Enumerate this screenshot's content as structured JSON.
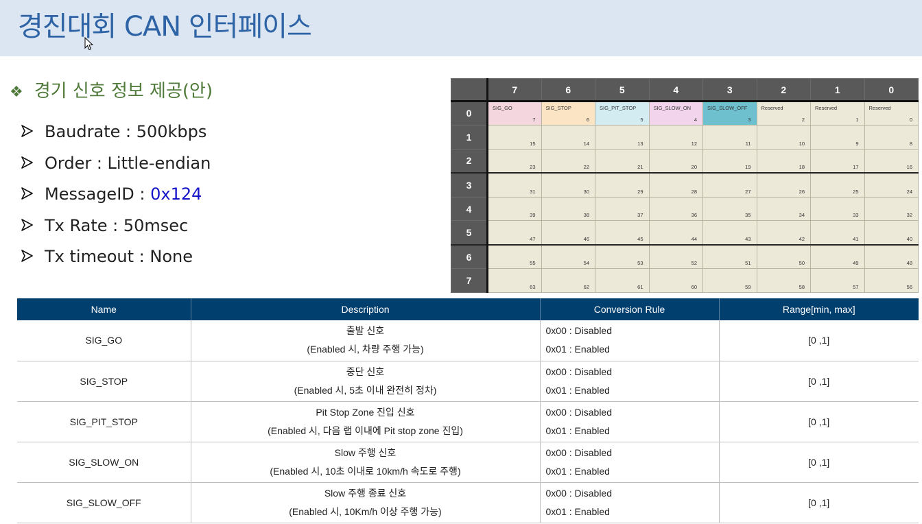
{
  "header": {
    "title": "경진대회 CAN 인터페이스"
  },
  "section": {
    "bullet": "❖",
    "title": "경기 신호 정보 제공(안)"
  },
  "specs": [
    {
      "label": "Baudrate",
      "sep": " : ",
      "value": "500kbps"
    },
    {
      "label": "Order",
      "sep": " : ",
      "value": "Little-endian"
    },
    {
      "label": "MessageID",
      "sep": " : ",
      "value": "0x124"
    },
    {
      "label": "Tx Rate",
      "sep": " : ",
      "value": "50msec"
    },
    {
      "label": "Tx timeout",
      "sep": " : ",
      "value": "None"
    }
  ],
  "bit_grid": {
    "bit_headers": [
      "7",
      "6",
      "5",
      "4",
      "3",
      "2",
      "1",
      "0"
    ],
    "byte_labels": [
      "0",
      "1",
      "2",
      "3",
      "4",
      "5",
      "6",
      "7"
    ],
    "byte0_signals": [
      "SIG_GO",
      "SIG_STOP",
      "SIG_PIT_STOP",
      "SIG_SLOW_ON",
      "SIG_SLOW_OFF",
      "Reserved",
      "Reserved",
      "Reserved"
    ],
    "bit_numbers": [
      [
        "7",
        "6",
        "5",
        "4",
        "3",
        "2",
        "1",
        "0"
      ],
      [
        "15",
        "14",
        "13",
        "12",
        "11",
        "10",
        "9",
        "8"
      ],
      [
        "23",
        "22",
        "21",
        "20",
        "19",
        "18",
        "17",
        "16"
      ],
      [
        "31",
        "30",
        "29",
        "28",
        "27",
        "26",
        "25",
        "24"
      ],
      [
        "39",
        "38",
        "37",
        "36",
        "35",
        "34",
        "33",
        "32"
      ],
      [
        "47",
        "46",
        "45",
        "44",
        "43",
        "42",
        "41",
        "40"
      ],
      [
        "55",
        "54",
        "53",
        "52",
        "51",
        "50",
        "49",
        "48"
      ],
      [
        "63",
        "62",
        "61",
        "60",
        "59",
        "58",
        "57",
        "56"
      ]
    ],
    "colors": {
      "header": "#595959",
      "cell": "#ece9d8",
      "sig_go": "#f4d7de",
      "sig_stop": "#fbe4c4",
      "sig_pit_stop": "#d2ecf2",
      "sig_slow_on": "#f2d5ec",
      "sig_slow_off": "#6fc0cf",
      "reserved": "#ece9d8"
    }
  },
  "signal_table": {
    "headers": [
      "Name",
      "Description",
      "Conversion Rule",
      "Range[min, max]"
    ],
    "rows": [
      {
        "name": "SIG_GO",
        "desc1": "출발 신호",
        "desc2": "(Enabled 시, 차량 주행 가능)",
        "rule1": "0x00 : Disabled",
        "rule2": "0x01 : Enabled",
        "range": "[0 ,1]"
      },
      {
        "name": "SIG_STOP",
        "desc1": "중단 신호",
        "desc2": "(Enabled 시, 5초 이내 완전히 정차)",
        "rule1": "0x00 : Disabled",
        "rule2": "0x01 : Enabled",
        "range": "[0 ,1]"
      },
      {
        "name": "SIG_PIT_STOP",
        "desc1": "Pit Stop Zone 진입 신호",
        "desc2": "(Enabled 시, 다음 랩 이내에 Pit stop zone 진입)",
        "rule1": "0x00 : Disabled",
        "rule2": "0x01 : Enabled",
        "range": "[0 ,1]"
      },
      {
        "name": "SIG_SLOW_ON",
        "desc1": "Slow 주행 신호",
        "desc2": "(Enabled 시, 10초 이내로 10km/h 속도로 주행)",
        "rule1": "0x00 : Disabled",
        "rule2": "0x01 : Enabled",
        "range": "[0 ,1]"
      },
      {
        "name": "SIG_SLOW_OFF",
        "desc1": "Slow 주행 종료 신호",
        "desc2": "(Enabled 시, 10Km/h 이상 주행 가능)",
        "rule1": "0x00 : Disabled",
        "rule2": "0x01 : Enabled",
        "range": "[0 ,1]"
      }
    ],
    "colors": {
      "header_bg": "#003f6e"
    }
  },
  "colors": {
    "title_bar": "#dce6f2",
    "title_text": "#2e64a6",
    "section_text": "#4f7a3a",
    "highlight": "#1414c8"
  },
  "icons": {
    "cursor": "mouse-cursor-icon",
    "bullet": "diamond-bullet-icon",
    "arrow": "arrowhead-bullet-icon"
  }
}
